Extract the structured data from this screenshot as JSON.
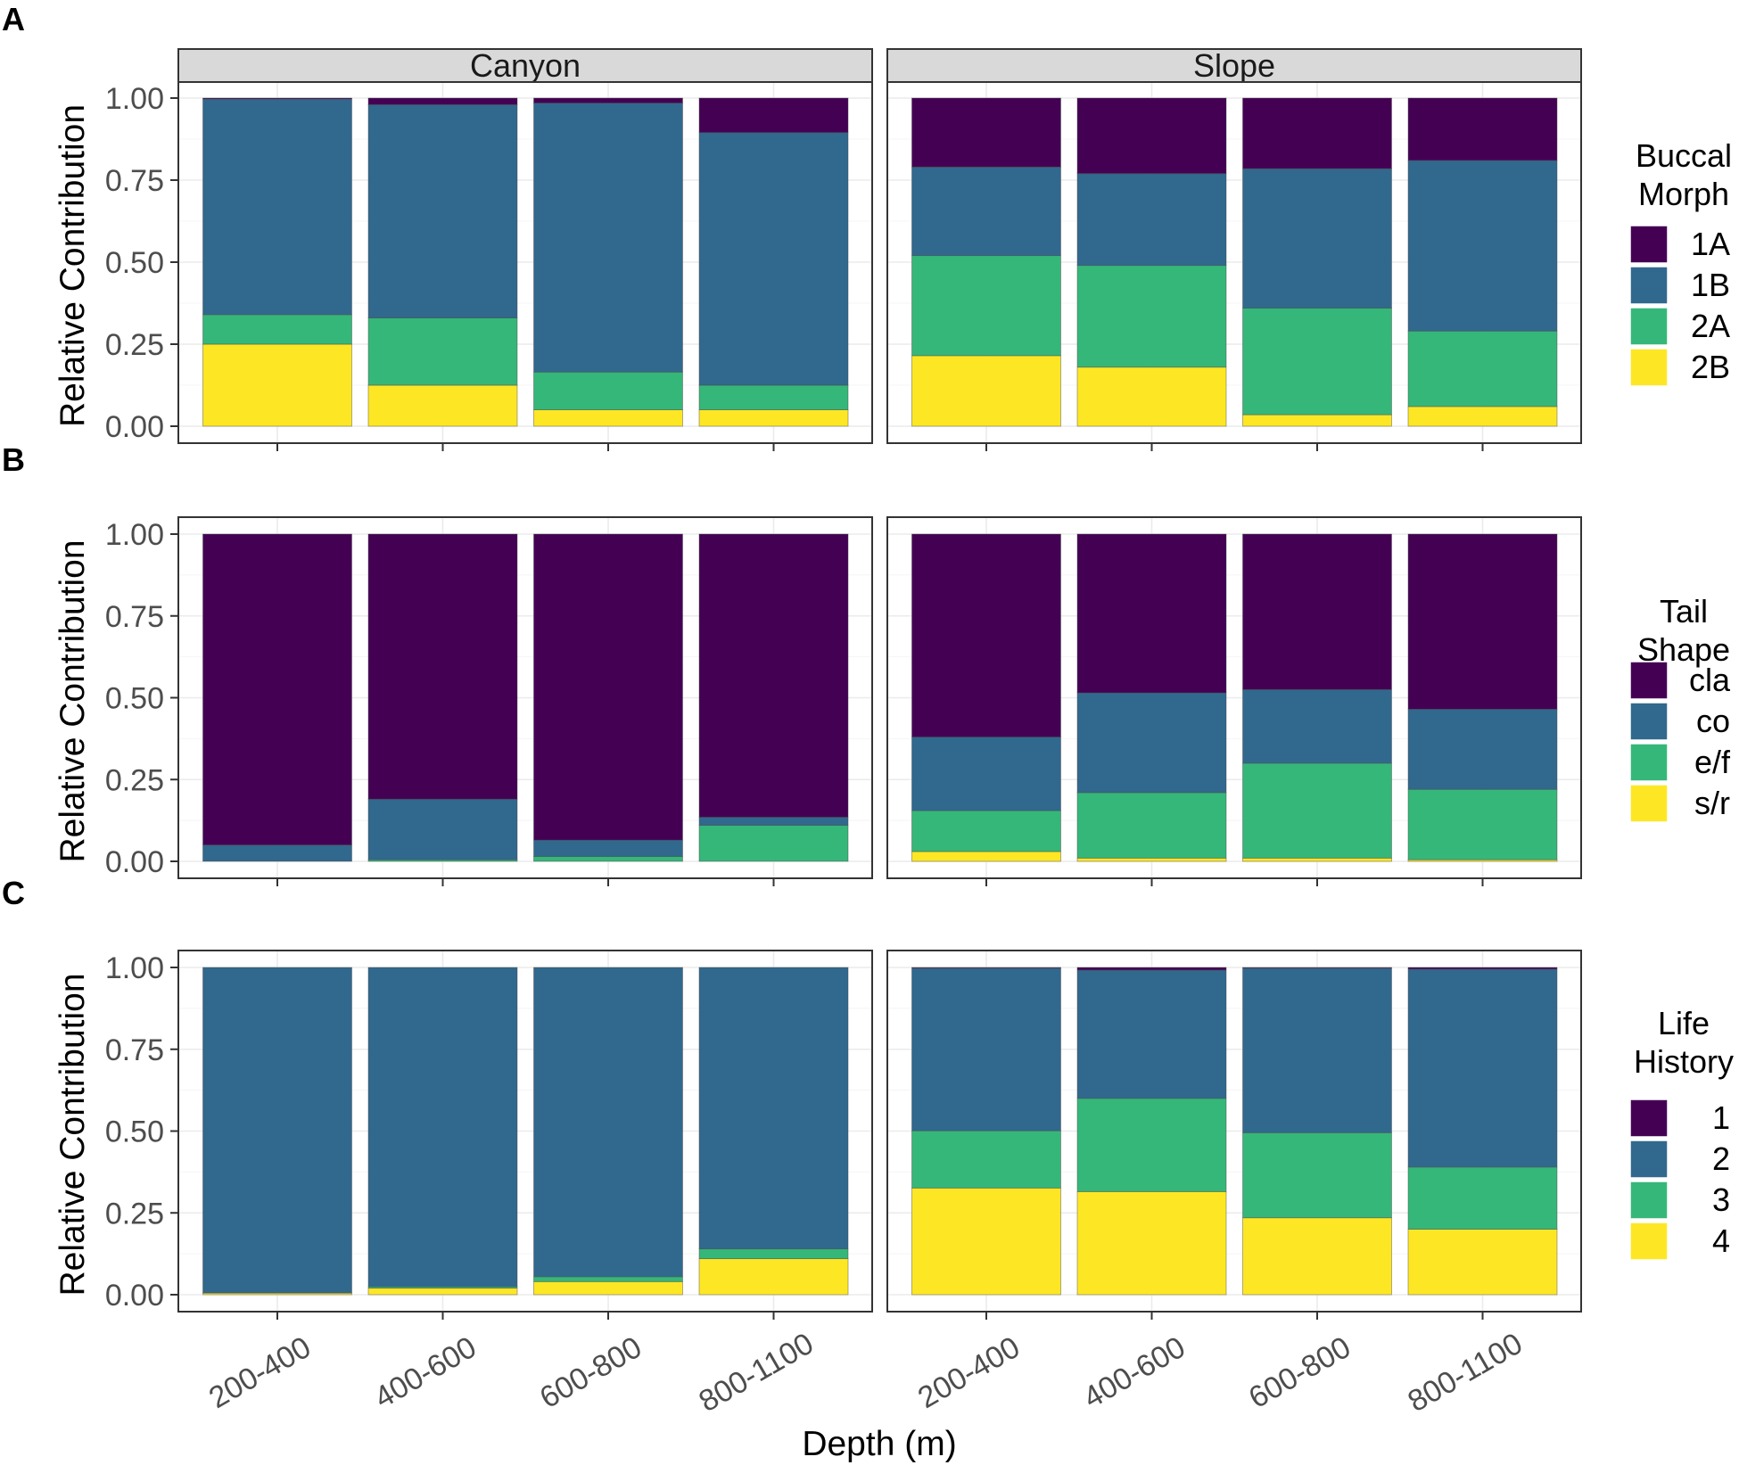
{
  "chart_data": {
    "type": "bar",
    "stacked": true,
    "x_categories": [
      "200-400",
      "400-600",
      "600-800",
      "800-1100"
    ],
    "facets": [
      "Canyon",
      "Slope"
    ],
    "xlabel": "Depth (m)",
    "ylim": [
      0,
      1
    ],
    "y_ticks": [
      "0.00",
      "0.25",
      "0.50",
      "0.75",
      "1.00"
    ],
    "colors": [
      "#440154",
      "#31688e",
      "#35b779",
      "#fde725"
    ],
    "panels": [
      {
        "letter": "A",
        "ylabel": "Relative Contribution",
        "legend_title": [
          "Buccal",
          "Morph"
        ],
        "groups": [
          "1A",
          "1B",
          "2A",
          "2B"
        ],
        "data": {
          "Canyon": [
            [
              0.003,
              0.657,
              0.09,
              0.25
            ],
            [
              0.02,
              0.65,
              0.205,
              0.125
            ],
            [
              0.015,
              0.82,
              0.115,
              0.05
            ],
            [
              0.105,
              0.77,
              0.075,
              0.05
            ]
          ],
          "Slope": [
            [
              0.21,
              0.27,
              0.305,
              0.215
            ],
            [
              0.23,
              0.28,
              0.31,
              0.18
            ],
            [
              0.215,
              0.425,
              0.325,
              0.035
            ],
            [
              0.19,
              0.52,
              0.23,
              0.06
            ]
          ]
        }
      },
      {
        "letter": "B",
        "ylabel": "Relative Contribution",
        "legend_title": [
          "Tail",
          "Shape"
        ],
        "groups": [
          "cla",
          "co",
          "e/f",
          "s/r"
        ],
        "data": {
          "Canyon": [
            [
              0.95,
              0.05,
              0.0,
              0.0
            ],
            [
              0.81,
              0.185,
              0.005,
              0.0
            ],
            [
              0.935,
              0.05,
              0.015,
              0.0
            ],
            [
              0.865,
              0.025,
              0.11,
              0.0
            ]
          ],
          "Slope": [
            [
              0.62,
              0.225,
              0.125,
              0.03
            ],
            [
              0.485,
              0.305,
              0.2,
              0.01
            ],
            [
              0.475,
              0.225,
              0.29,
              0.01
            ],
            [
              0.535,
              0.245,
              0.215,
              0.005
            ]
          ]
        }
      },
      {
        "letter": "C",
        "ylabel": "Relative Contribution",
        "legend_title": [
          "Life",
          "History"
        ],
        "groups": [
          "1",
          "2",
          "3",
          "4"
        ],
        "data": {
          "Canyon": [
            [
              0.0,
              0.995,
              0.0,
              0.005
            ],
            [
              0.0,
              0.975,
              0.005,
              0.02
            ],
            [
              0.0,
              0.945,
              0.015,
              0.04
            ],
            [
              0.0,
              0.86,
              0.03,
              0.11
            ]
          ],
          "Slope": [
            [
              0.002,
              0.497,
              0.175,
              0.326
            ],
            [
              0.008,
              0.392,
              0.285,
              0.315
            ],
            [
              0.002,
              0.503,
              0.26,
              0.235
            ],
            [
              0.005,
              0.605,
              0.19,
              0.2
            ]
          ]
        }
      }
    ]
  }
}
